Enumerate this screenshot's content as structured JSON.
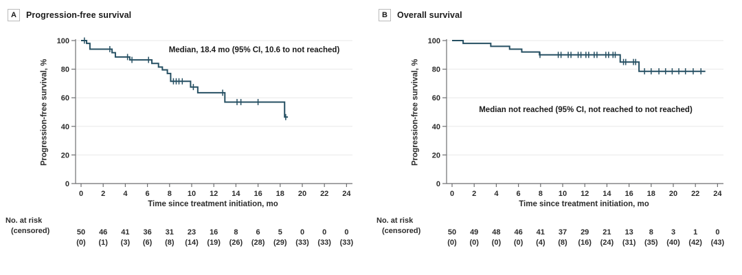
{
  "figure": {
    "risk_header_line1": "No. at risk",
    "risk_header_line2": "(censored)"
  },
  "colors": {
    "curve": "#254f62",
    "text": "#2b2b2b",
    "axis": "#6d6e70",
    "grid": "#e8e8e8"
  },
  "chart_data": [
    {
      "type": "line",
      "subtype": "kaplan-meier-step",
      "letter": "A",
      "title": "Progression-free survival",
      "ylabel": "Progression-free survival, %",
      "xlabel": "Time since treatment initiation, mo",
      "annotation": "Median, 18.4 mo (95% CI, 10.6 to not reached)",
      "xlim": [
        0,
        24
      ],
      "ylim": [
        0,
        100
      ],
      "grid": "horizontal",
      "legend": "none",
      "xticks": [
        0,
        2,
        4,
        6,
        8,
        10,
        12,
        14,
        16,
        18,
        20,
        22,
        24
      ],
      "yticks": [
        0,
        20,
        40,
        60,
        80,
        100
      ],
      "steps": [
        [
          0,
          100
        ],
        [
          0.5,
          98
        ],
        [
          0.8,
          94
        ],
        [
          2.8,
          91.5
        ],
        [
          3.1,
          88.5
        ],
        [
          4.4,
          86.5
        ],
        [
          6.4,
          84
        ],
        [
          7.0,
          81.5
        ],
        [
          7.35,
          79.5
        ],
        [
          7.8,
          77
        ],
        [
          8.1,
          71.5
        ],
        [
          9.9,
          67.5
        ],
        [
          10.55,
          63.5
        ],
        [
          13.0,
          57
        ],
        [
          18.4,
          46.5
        ]
      ],
      "end_time": 18.7,
      "censors": [
        [
          0.3,
          100
        ],
        [
          2.6,
          94
        ],
        [
          4.2,
          88.5
        ],
        [
          4.6,
          86.5
        ],
        [
          6.1,
          86.5
        ],
        [
          8.35,
          71.5
        ],
        [
          8.6,
          71.5
        ],
        [
          8.85,
          71.5
        ],
        [
          9.15,
          71.5
        ],
        [
          10.15,
          67.5
        ],
        [
          12.8,
          63.5
        ],
        [
          14.1,
          57
        ],
        [
          14.45,
          57
        ],
        [
          16.0,
          57
        ],
        [
          18.5,
          46.5
        ]
      ],
      "risk_times": [
        0,
        2,
        4,
        6,
        8,
        10,
        12,
        14,
        16,
        18,
        20,
        22,
        24
      ],
      "at_risk": [
        50,
        46,
        41,
        36,
        31,
        23,
        16,
        8,
        6,
        5,
        0,
        0,
        0
      ],
      "censored_counts": [
        0,
        1,
        3,
        6,
        8,
        14,
        19,
        26,
        28,
        29,
        33,
        33,
        33
      ]
    },
    {
      "type": "line",
      "subtype": "kaplan-meier-step",
      "letter": "B",
      "title": "Overall survival",
      "ylabel": "Progression-free survival, %",
      "xlabel": "Time since treatment initiation, mo",
      "annotation": "Median not reached (95% CI, not reached to not reached)",
      "xlim": [
        0,
        24
      ],
      "ylim": [
        0,
        100
      ],
      "grid": "horizontal",
      "legend": "none",
      "xticks": [
        0,
        2,
        4,
        6,
        8,
        10,
        12,
        14,
        16,
        18,
        20,
        22,
        24
      ],
      "yticks": [
        0,
        20,
        40,
        60,
        80,
        100
      ],
      "steps": [
        [
          0,
          100
        ],
        [
          1.0,
          98
        ],
        [
          3.5,
          96
        ],
        [
          5.2,
          94
        ],
        [
          6.3,
          92
        ],
        [
          7.9,
          90
        ],
        [
          15.2,
          85
        ],
        [
          16.9,
          78.5
        ]
      ],
      "end_time": 22.9,
      "censors": [
        [
          7.95,
          90
        ],
        [
          9.6,
          90
        ],
        [
          9.85,
          90
        ],
        [
          10.5,
          90
        ],
        [
          10.75,
          90
        ],
        [
          11.4,
          90
        ],
        [
          11.65,
          90
        ],
        [
          12.1,
          90
        ],
        [
          12.35,
          90
        ],
        [
          12.85,
          90
        ],
        [
          13.1,
          90
        ],
        [
          13.9,
          90
        ],
        [
          14.15,
          90
        ],
        [
          14.55,
          90
        ],
        [
          14.75,
          90
        ],
        [
          15.5,
          85
        ],
        [
          15.7,
          85
        ],
        [
          16.4,
          85
        ],
        [
          16.6,
          85
        ],
        [
          17.4,
          78.5
        ],
        [
          18.0,
          78.5
        ],
        [
          18.7,
          78.5
        ],
        [
          19.3,
          78.5
        ],
        [
          19.9,
          78.5
        ],
        [
          20.5,
          78.5
        ],
        [
          21.1,
          78.5
        ],
        [
          21.8,
          78.5
        ],
        [
          22.5,
          78.5
        ]
      ],
      "risk_times": [
        0,
        2,
        4,
        6,
        8,
        10,
        12,
        14,
        16,
        18,
        20,
        22,
        24
      ],
      "at_risk": [
        50,
        49,
        48,
        46,
        41,
        37,
        29,
        21,
        13,
        8,
        3,
        1,
        0
      ],
      "censored_counts": [
        0,
        0,
        0,
        0,
        4,
        8,
        16,
        24,
        31,
        35,
        40,
        42,
        43
      ]
    }
  ]
}
